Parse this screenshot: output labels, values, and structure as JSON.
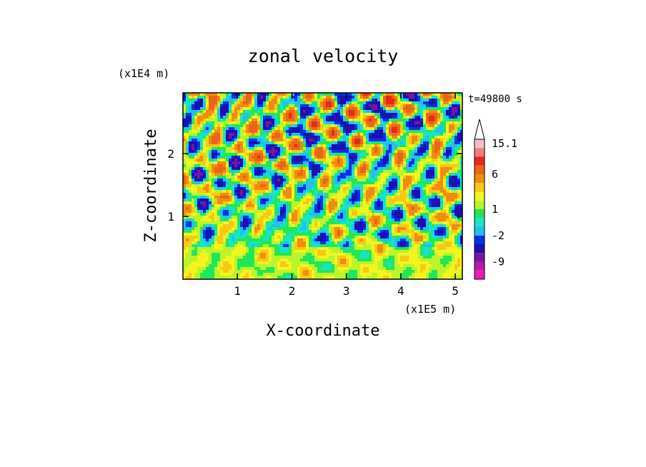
{
  "chart_data": {
    "type": "heatmap",
    "title": "zonal velocity",
    "xlabel": "X-coordinate",
    "ylabel": "Z-coordinate",
    "x_unit": "(x1E5 m)",
    "y_unit": "(x1E4 m)",
    "time_label": "t=49800 s",
    "x_ticks": [
      1,
      2,
      3,
      4,
      5
    ],
    "y_ticks": [
      1,
      2
    ],
    "xlim": [
      0,
      5.13
    ],
    "ylim": [
      0,
      2.97
    ],
    "colorbar": {
      "levels": [
        -15,
        -12,
        -9,
        -6,
        -3,
        -2,
        -1,
        0,
        1,
        2,
        3,
        4,
        6,
        9,
        12,
        15.1
      ],
      "colors": [
        "#ee1bb8",
        "#b31aa6",
        "#7a14a0",
        "#1a10b4",
        "#0033e6",
        "#22bff2",
        "#14e6c8",
        "#22e65a",
        "#b9f52a",
        "#f4f420",
        "#f8c814",
        "#f08c0e",
        "#ec6418",
        "#ea2818",
        "#ef7f7f",
        "#f6bfbf"
      ],
      "labels": [
        "15.1",
        "6",
        "1",
        "-2",
        "-9"
      ],
      "label_values": [
        15.1,
        6,
        1,
        -2,
        -9
      ]
    }
  }
}
